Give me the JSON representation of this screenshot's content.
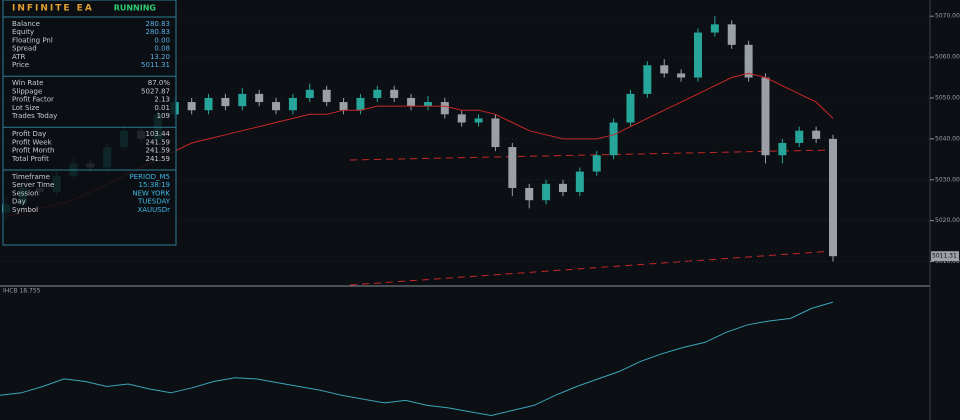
{
  "panel": {
    "title": "INFINITE EA",
    "status": "RUNNING",
    "sections": [
      [
        {
          "label": "Balance",
          "value": "280.83"
        },
        {
          "label": "Equity",
          "value": "280.83"
        },
        {
          "label": "Floating Pnl",
          "value": "0.00"
        },
        {
          "label": "Spread",
          "value": "0.08"
        },
        {
          "label": "ATR",
          "value": "13.20"
        },
        {
          "label": "Price",
          "value": "5011.31"
        }
      ],
      [
        {
          "label": "Win Rate",
          "value": "87.0%"
        },
        {
          "label": "Slippage",
          "value": "5027.87"
        },
        {
          "label": "Profit Factor",
          "value": "2.13"
        },
        {
          "label": "Lot Size",
          "value": "0.01"
        },
        {
          "label": "Trades Today",
          "value": "109"
        }
      ],
      [
        {
          "label": "Profit Day",
          "value": "103.44"
        },
        {
          "label": "Profit Week",
          "value": "241.59"
        },
        {
          "label": "Profit Month",
          "value": "241.59"
        },
        {
          "label": "Total Profit",
          "value": "241.59"
        }
      ],
      [
        {
          "label": "Timeframe",
          "value": "PERIOD_M5"
        },
        {
          "label": "Server Time",
          "value": "15:38:19"
        },
        {
          "label": "Session",
          "value": "NEW YORK"
        },
        {
          "label": "Day",
          "value": "TUESDAY"
        },
        {
          "label": "Symbol",
          "value": "XAUUSDr"
        }
      ]
    ]
  },
  "chart_data": {
    "type": "candlestick",
    "open": [
      5022,
      5024,
      5028,
      5027,
      5031,
      5034,
      5033,
      5038,
      5042,
      5040,
      5046,
      5049,
      5047,
      5050,
      5048,
      5051,
      5049,
      5047,
      5050,
      5052,
      5049,
      5047,
      5050,
      5052,
      5050,
      5048,
      5049,
      5046,
      5044,
      5045,
      5038,
      5028,
      5025,
      5029,
      5027,
      5032,
      5036,
      5044,
      5051,
      5058,
      5056,
      5055,
      5066,
      5068,
      5063,
      5055,
      5036,
      5039,
      5042,
      5040
    ],
    "high": [
      5025.5,
      5029.5,
      5029,
      5032,
      5035.5,
      5035,
      5039,
      5043.5,
      5043,
      5047,
      5050.5,
      5050,
      5051,
      5051,
      5052.5,
      5052,
      5050,
      5051,
      5053.5,
      5053,
      5050,
      5051,
      5053,
      5053,
      5051,
      5050.5,
      5050,
      5047,
      5046,
      5046,
      5039,
      5029,
      5030,
      5030,
      5033,
      5037,
      5045,
      5052,
      5059,
      5059.5,
      5057,
      5067,
      5070,
      5069,
      5064,
      5056,
      5040,
      5043,
      5043,
      5041
    ],
    "low": [
      5020,
      5023,
      5026,
      5026,
      5030,
      5032,
      5032,
      5037,
      5039,
      5039,
      5045,
      5046,
      5046,
      5047,
      5047,
      5048,
      5046,
      5046,
      5049,
      5048,
      5046,
      5046,
      5049,
      5049,
      5047,
      5047,
      5045,
      5043,
      5043,
      5037,
      5026,
      5023,
      5024,
      5026,
      5026,
      5031,
      5035,
      5043,
      5050,
      5055,
      5054,
      5054,
      5065,
      5062,
      5054,
      5034,
      5034,
      5038,
      5039,
      5010
    ],
    "close": [
      5024,
      5028,
      5027,
      5031,
      5034,
      5033,
      5038,
      5042,
      5040,
      5046,
      5049,
      5047,
      5050,
      5048,
      5051,
      5049,
      5047,
      5050,
      5052,
      5049,
      5047,
      5050,
      5052,
      5050,
      5048,
      5049,
      5046,
      5044,
      5045,
      5038,
      5028,
      5025,
      5029,
      5027,
      5032,
      5036,
      5044,
      5051,
      5058,
      5056,
      5055,
      5066,
      5068,
      5063,
      5055,
      5036,
      5039,
      5042,
      5040,
      5011.31
    ],
    "up_color": "#26a69a",
    "down_color": "#9aa0a6",
    "ma": {
      "color": "#c62828",
      "values": [
        5021,
        5022,
        5023,
        5024,
        5025,
        5027,
        5029,
        5031,
        5033,
        5035,
        5037,
        5039,
        5040,
        5041,
        5042,
        5043,
        5044,
        5045,
        5046,
        5046,
        5047,
        5047,
        5048,
        5048,
        5048,
        5048,
        5048,
        5047,
        5047,
        5046,
        5044,
        5042,
        5041,
        5040,
        5040,
        5040,
        5041,
        5043,
        5045,
        5047,
        5049,
        5051,
        5053,
        5055,
        5056,
        5055,
        5053,
        5051,
        5049,
        5045
      ]
    },
    "ylim": [
      5005,
      5072
    ],
    "yticks": [
      {
        "value": 5070,
        "label": "5070.00"
      },
      {
        "value": 5060,
        "label": "5060.00"
      },
      {
        "value": 5050,
        "label": "5050.00"
      },
      {
        "value": 5040,
        "label": "5040.00"
      },
      {
        "value": 5030,
        "label": "5030.00"
      },
      {
        "value": 5020,
        "label": "5020.00"
      },
      {
        "value": 5010,
        "label": "5010.00"
      }
    ],
    "grid": true,
    "oscillator": {
      "label": "IHCB 18.755",
      "color": "#3aa6b9",
      "ylim": [
        0,
        100
      ],
      "values": [
        18,
        20,
        25,
        31,
        29,
        25,
        27,
        23,
        20,
        24,
        29,
        32,
        31,
        28,
        25,
        22,
        18,
        15,
        12,
        14,
        10,
        8,
        5,
        2,
        6,
        10,
        18,
        25,
        31,
        37,
        45,
        51,
        56,
        60,
        68,
        74,
        77,
        79,
        87,
        92
      ]
    }
  }
}
